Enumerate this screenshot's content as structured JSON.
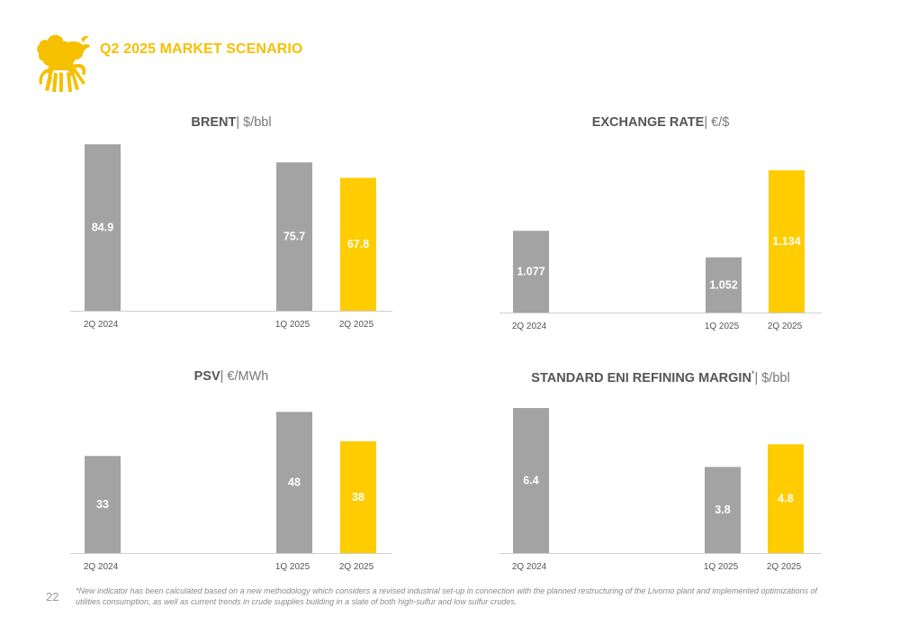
{
  "page": {
    "title": "Q2 2025 MARKET SCENARIO",
    "page_number": "22",
    "footnote": "*New indicator has been calculated based on a new methodology which considers a revised industrial set-up in connection with the planned restructuring of the Livorno plant and implemented optimizations of utilities consumption, as well as current trends in crude supplies building in a slate of both high-sulfur and low sulfur crudes."
  },
  "logo": {
    "icon": "six-legged-dog-logo",
    "color": "#f5c000"
  },
  "colors": {
    "gray_bar": "#a3a3a3",
    "highlight_bar": "#ffcc00",
    "axis": "#d0d0d0",
    "tick_text": "#555555",
    "label_text": "#ffffff"
  },
  "chart_data": [
    {
      "type": "bar",
      "title": "BRENT",
      "unit": "| $/bbl",
      "categories": [
        "2Q 2024",
        "1Q 2025",
        "2Q 2025"
      ],
      "values": [
        84.9,
        75.7,
        67.8
      ],
      "labels": [
        "84.9",
        "75.7",
        "67.8"
      ],
      "highlight": [
        false,
        false,
        true
      ],
      "ylim": [
        0,
        85
      ]
    },
    {
      "type": "bar",
      "title": "EXCHANGE RATE",
      "unit": "| €/$",
      "categories": [
        "2Q 2024",
        "1Q 2025",
        "2Q 2025"
      ],
      "values": [
        1.077,
        1.052,
        1.134
      ],
      "labels": [
        "1.077",
        "1.052",
        "1.134"
      ],
      "highlight": [
        false,
        false,
        true
      ],
      "ylim": [
        1.0,
        1.14
      ]
    },
    {
      "type": "bar",
      "title": "PSV",
      "unit": "| €/MWh",
      "categories": [
        "2Q 2024",
        "1Q 2025",
        "2Q 2025"
      ],
      "values": [
        33,
        48,
        38
      ],
      "labels": [
        "33",
        "48",
        "38"
      ],
      "highlight": [
        false,
        false,
        true
      ],
      "ylim": [
        0,
        49
      ]
    },
    {
      "type": "bar",
      "title": "STANDARD ENI REFINING MARGIN",
      "title_sup": "*",
      "unit": "| $/bbl",
      "categories": [
        "2Q 2024",
        "1Q 2025",
        "2Q 2025"
      ],
      "values": [
        6.4,
        3.8,
        4.8
      ],
      "labels": [
        "6.4",
        "3.8",
        "4.8"
      ],
      "highlight": [
        false,
        false,
        true
      ],
      "ylim": [
        0,
        6.4
      ]
    }
  ]
}
